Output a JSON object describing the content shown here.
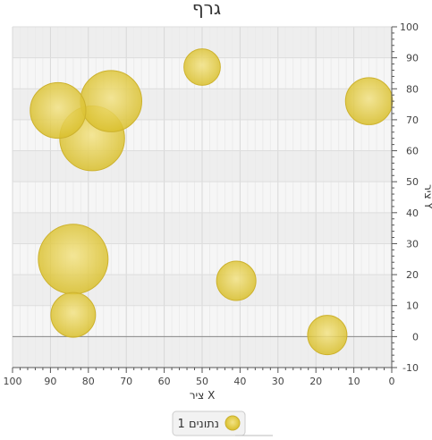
{
  "chart_data": {
    "type": "bubble",
    "title": "גרף",
    "xlabel": "ציר X",
    "ylabel": "ציר Y",
    "xlim": [
      100,
      0
    ],
    "ylim": [
      -10,
      100
    ],
    "x_reversed": true,
    "y_axis_position": "right",
    "x_ticks": [
      100,
      90,
      80,
      70,
      60,
      50,
      40,
      30,
      20,
      10,
      0
    ],
    "y_ticks": [
      -10,
      0,
      10,
      20,
      30,
      40,
      50,
      60,
      70,
      80,
      90,
      100
    ],
    "grid": true,
    "legend": {
      "position": "bottom",
      "entries": [
        "נתונים 1"
      ]
    },
    "series": [
      {
        "name": "נתונים 1",
        "color": "#e5cc3a",
        "points": [
          {
            "x": 50,
            "y": 87,
            "size": 3
          },
          {
            "x": 6,
            "y": 76,
            "size": 5
          },
          {
            "x": 88,
            "y": 73,
            "size": 7
          },
          {
            "x": 74,
            "y": 76,
            "size": 8.5
          },
          {
            "x": 79,
            "y": 64,
            "size": 9.5
          },
          {
            "x": 84,
            "y": 25,
            "size": 11
          },
          {
            "x": 41,
            "y": 18,
            "size": 3.5
          },
          {
            "x": 84,
            "y": 7,
            "size": 4.5
          },
          {
            "x": 17,
            "y": 0.5,
            "size": 3.5
          }
        ]
      }
    ]
  }
}
